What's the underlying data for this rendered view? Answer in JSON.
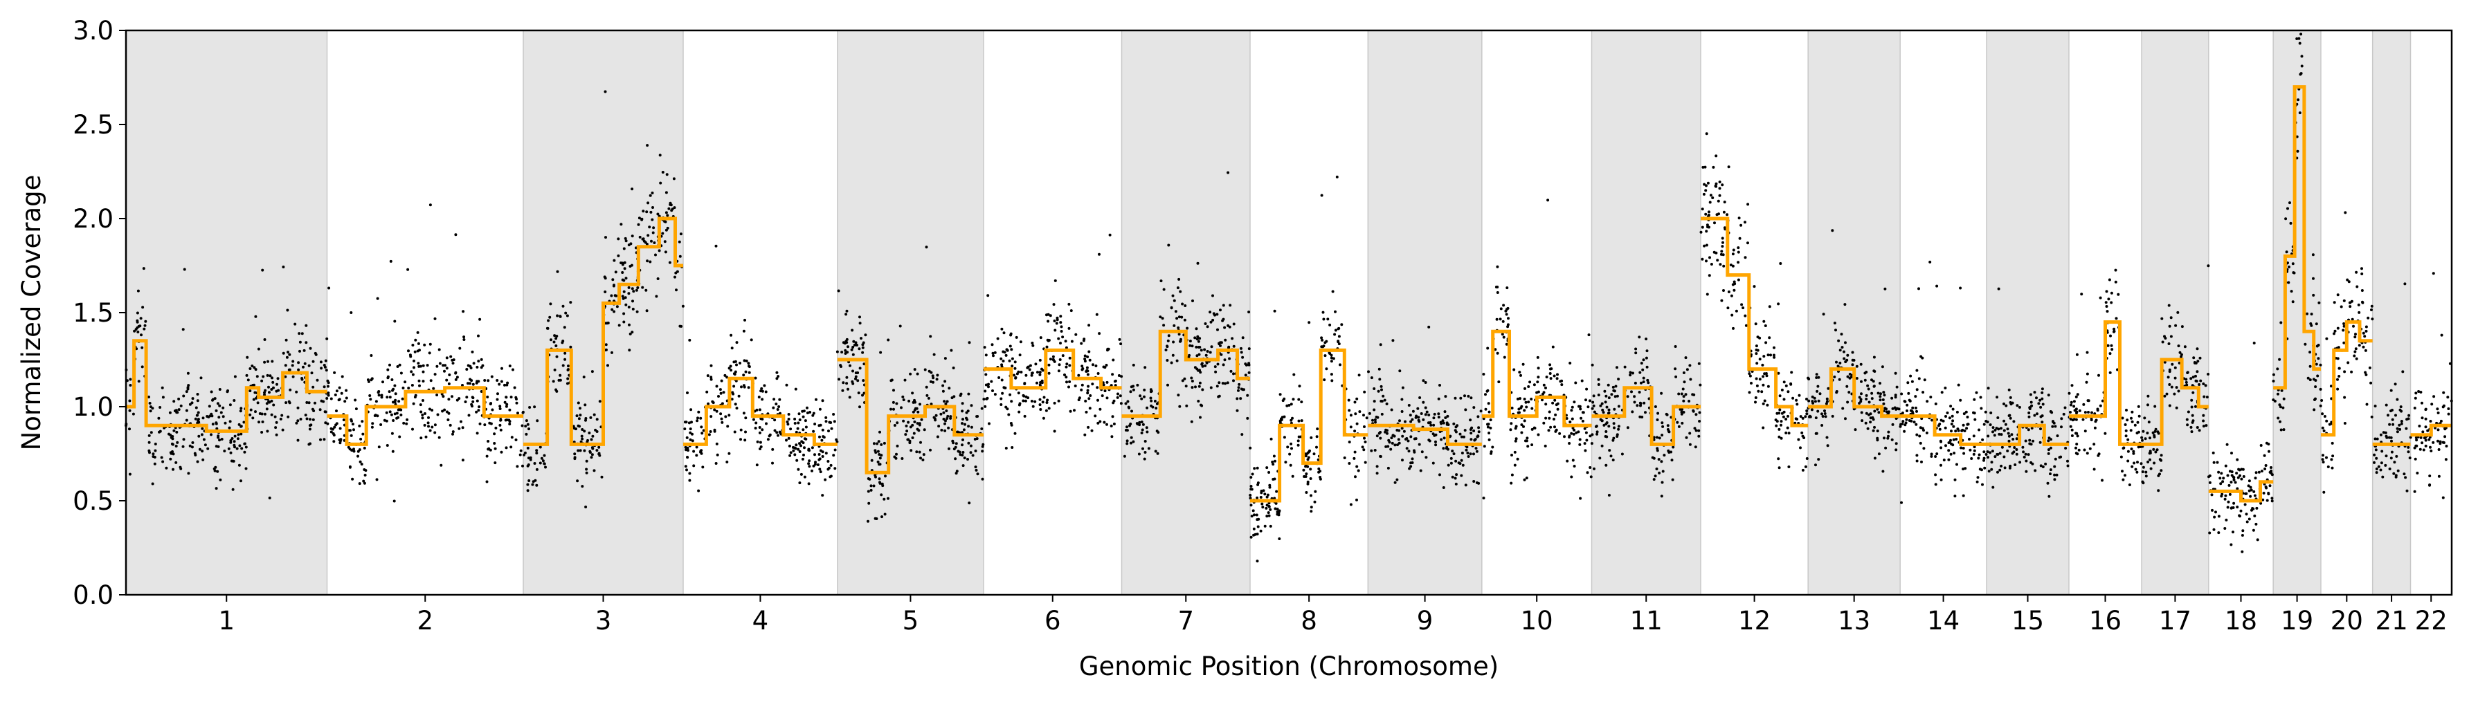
{
  "chart_data": {
    "type": "scatter",
    "title": "",
    "xlabel": "Genomic Position (Chromosome)",
    "ylabel": "Normalized Coverage",
    "ylim": [
      0.0,
      3.0
    ],
    "yticks": [
      "0.0",
      "0.5",
      "1.0",
      "1.5",
      "2.0",
      "2.5",
      "3.0"
    ],
    "grid": false,
    "legend": "none",
    "colors": {
      "points": "#000000",
      "segments": "#ffa500",
      "shade": "#e5e5e5",
      "shade_edge": "#c8c8c8",
      "axes": "#000000"
    },
    "chromosomes": [
      {
        "label": "1",
        "length": 249,
        "shaded": true,
        "base": 0.93,
        "segments": [
          [
            0.0,
            1.0
          ],
          [
            0.04,
            1.35
          ],
          [
            0.1,
            0.9
          ],
          [
            0.4,
            0.87
          ],
          [
            0.6,
            1.1
          ],
          [
            0.66,
            1.05
          ],
          [
            0.78,
            1.18
          ],
          [
            0.9,
            1.08
          ]
        ]
      },
      {
        "label": "2",
        "length": 243,
        "shaded": false,
        "base": 0.98,
        "segments": [
          [
            0.0,
            0.95
          ],
          [
            0.1,
            0.8
          ],
          [
            0.2,
            1.0
          ],
          [
            0.4,
            1.08
          ],
          [
            0.6,
            1.1
          ],
          [
            0.8,
            0.95
          ]
        ]
      },
      {
        "label": "3",
        "length": 198,
        "shaded": true,
        "base": 1.2,
        "segments": [
          [
            0.0,
            0.8
          ],
          [
            0.15,
            1.3
          ],
          [
            0.3,
            0.8
          ],
          [
            0.5,
            1.55
          ],
          [
            0.6,
            1.65
          ],
          [
            0.72,
            1.85
          ],
          [
            0.85,
            2.0
          ],
          [
            0.95,
            1.75
          ]
        ]
      },
      {
        "label": "4",
        "length": 191,
        "shaded": false,
        "base": 0.92,
        "segments": [
          [
            0.0,
            0.8
          ],
          [
            0.15,
            1.0
          ],
          [
            0.3,
            1.15
          ],
          [
            0.45,
            0.95
          ],
          [
            0.65,
            0.85
          ],
          [
            0.85,
            0.8
          ]
        ]
      },
      {
        "label": "5",
        "length": 181,
        "shaded": true,
        "base": 0.95,
        "segments": [
          [
            0.0,
            1.25
          ],
          [
            0.2,
            0.65
          ],
          [
            0.35,
            0.95
          ],
          [
            0.6,
            1.0
          ],
          [
            0.8,
            0.85
          ]
        ]
      },
      {
        "label": "6",
        "length": 171,
        "shaded": false,
        "base": 1.15,
        "segments": [
          [
            0.0,
            1.2
          ],
          [
            0.2,
            1.1
          ],
          [
            0.45,
            1.3
          ],
          [
            0.65,
            1.15
          ],
          [
            0.85,
            1.1
          ]
        ]
      },
      {
        "label": "7",
        "length": 159,
        "shaded": true,
        "base": 1.2,
        "segments": [
          [
            0.0,
            0.95
          ],
          [
            0.3,
            1.4
          ],
          [
            0.5,
            1.25
          ],
          [
            0.75,
            1.3
          ],
          [
            0.9,
            1.15
          ]
        ]
      },
      {
        "label": "8",
        "length": 146,
        "shaded": false,
        "base": 0.9,
        "segments": [
          [
            0.0,
            0.5
          ],
          [
            0.25,
            0.9
          ],
          [
            0.45,
            0.7
          ],
          [
            0.6,
            1.3
          ],
          [
            0.8,
            0.85
          ]
        ]
      },
      {
        "label": "9",
        "length": 141,
        "shaded": true,
        "base": 0.85,
        "segments": [
          [
            0.0,
            0.9
          ],
          [
            0.4,
            0.88
          ],
          [
            0.7,
            0.8
          ]
        ]
      },
      {
        "label": "10",
        "length": 136,
        "shaded": false,
        "base": 1.0,
        "segments": [
          [
            0.0,
            0.95
          ],
          [
            0.1,
            1.4
          ],
          [
            0.25,
            0.95
          ],
          [
            0.5,
            1.05
          ],
          [
            0.75,
            0.9
          ]
        ]
      },
      {
        "label": "11",
        "length": 135,
        "shaded": true,
        "base": 0.92,
        "segments": [
          [
            0.0,
            0.95
          ],
          [
            0.3,
            1.1
          ],
          [
            0.55,
            0.8
          ],
          [
            0.75,
            1.0
          ]
        ]
      },
      {
        "label": "12",
        "length": 133,
        "shaded": false,
        "base": 1.25,
        "segments": [
          [
            0.0,
            2.0
          ],
          [
            0.25,
            1.7
          ],
          [
            0.45,
            1.2
          ],
          [
            0.7,
            1.0
          ],
          [
            0.85,
            0.9
          ]
        ]
      },
      {
        "label": "13",
        "length": 114,
        "shaded": true,
        "base": 1.0,
        "segments": [
          [
            0.0,
            1.0
          ],
          [
            0.25,
            1.2
          ],
          [
            0.5,
            1.0
          ],
          [
            0.8,
            0.95
          ]
        ]
      },
      {
        "label": "14",
        "length": 107,
        "shaded": false,
        "base": 0.9,
        "segments": [
          [
            0.0,
            0.95
          ],
          [
            0.4,
            0.85
          ],
          [
            0.7,
            0.8
          ]
        ]
      },
      {
        "label": "15",
        "length": 102,
        "shaded": true,
        "base": 0.85,
        "segments": [
          [
            0.0,
            0.8
          ],
          [
            0.4,
            0.9
          ],
          [
            0.7,
            0.8
          ]
        ]
      },
      {
        "label": "16",
        "length": 90,
        "shaded": false,
        "base": 0.85,
        "segments": [
          [
            0.0,
            0.95
          ],
          [
            0.5,
            1.45
          ],
          [
            0.7,
            0.8
          ]
        ]
      },
      {
        "label": "17",
        "length": 83,
        "shaded": true,
        "base": 1.05,
        "segments": [
          [
            0.0,
            0.8
          ],
          [
            0.3,
            1.25
          ],
          [
            0.6,
            1.1
          ],
          [
            0.85,
            1.0
          ]
        ]
      },
      {
        "label": "18",
        "length": 80,
        "shaded": false,
        "base": 0.55,
        "segments": [
          [
            0.0,
            0.55
          ],
          [
            0.5,
            0.5
          ],
          [
            0.8,
            0.6
          ]
        ]
      },
      {
        "label": "19",
        "length": 59,
        "shaded": true,
        "base": 1.45,
        "segments": [
          [
            0.0,
            1.1
          ],
          [
            0.25,
            1.8
          ],
          [
            0.45,
            2.7
          ],
          [
            0.65,
            1.4
          ],
          [
            0.85,
            1.2
          ]
        ]
      },
      {
        "label": "20",
        "length": 64,
        "shaded": false,
        "base": 1.15,
        "segments": [
          [
            0.0,
            0.85
          ],
          [
            0.25,
            1.3
          ],
          [
            0.5,
            1.45
          ],
          [
            0.75,
            1.35
          ]
        ]
      },
      {
        "label": "21",
        "length": 47,
        "shaded": true,
        "base": 0.8,
        "segments": [
          [
            0.0,
            0.8
          ]
        ]
      },
      {
        "label": "22",
        "length": 51,
        "shaded": false,
        "base": 0.85,
        "segments": [
          [
            0.0,
            0.85
          ],
          [
            0.5,
            0.9
          ]
        ]
      }
    ]
  }
}
